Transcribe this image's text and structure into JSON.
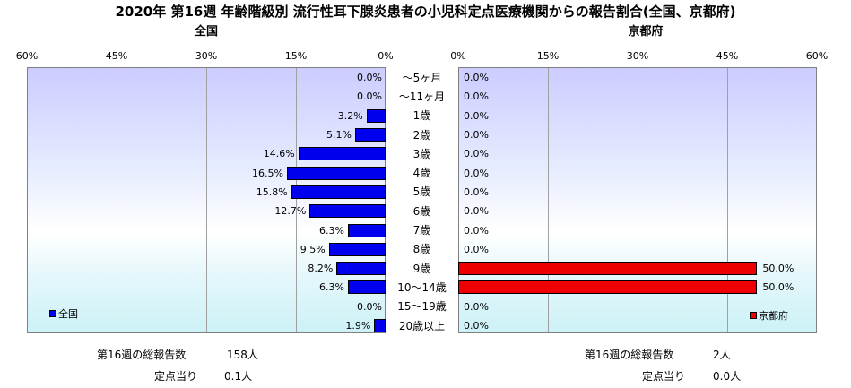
{
  "chart_data": {
    "type": "bar",
    "title": "2020年 第16週 年齢階級別 流行性耳下腺炎患者の小児科定点医療機関からの報告割合(全国、京都府)",
    "categories": [
      "～5ヶ月",
      "～11ヶ月",
      "1歳",
      "2歳",
      "3歳",
      "4歳",
      "5歳",
      "6歳",
      "7歳",
      "8歳",
      "9歳",
      "10～14歳",
      "15～19歳",
      "20歳以上"
    ],
    "xlim": [
      0,
      60
    ],
    "ticks": [
      "60%",
      "45%",
      "30%",
      "15%",
      "0%"
    ],
    "ticks_right": [
      "0%",
      "15%",
      "30%",
      "45%",
      "60%"
    ],
    "series": [
      {
        "name": "全国",
        "side_title": "全国",
        "color": "#0000ee",
        "values": [
          0.0,
          0.0,
          3.2,
          5.1,
          14.6,
          16.5,
          15.8,
          12.7,
          6.3,
          9.5,
          8.2,
          6.3,
          0.0,
          1.9
        ],
        "labels": [
          "0.0%",
          "0.0%",
          "3.2%",
          "5.1%",
          "14.6%",
          "16.5%",
          "15.8%",
          "12.7%",
          "6.3%",
          "9.5%",
          "8.2%",
          "6.3%",
          "0.0%",
          "1.9%"
        ]
      },
      {
        "name": "京都府",
        "side_title": "京都府",
        "color": "#ee0000",
        "values": [
          0.0,
          0.0,
          0.0,
          0.0,
          0.0,
          0.0,
          0.0,
          0.0,
          0.0,
          0.0,
          50.0,
          50.0,
          0.0,
          0.0
        ],
        "labels": [
          "0.0%",
          "0.0%",
          "0.0%",
          "0.0%",
          "0.0%",
          "0.0%",
          "0.0%",
          "0.0%",
          "0.0%",
          "0.0%",
          "50.0%",
          "50.0%",
          "0.0%",
          "0.0%"
        ]
      }
    ],
    "grid": true,
    "legend_position": "bottom-inside"
  },
  "footer": {
    "left_total_label": "第16週の総報告数",
    "left_total_value": "158人",
    "left_per_label": "定点当り",
    "left_per_value": "0.1人",
    "right_total_label": "第16週の総報告数",
    "right_total_value": "2人",
    "right_per_label": "定点当り",
    "right_per_value": "0.0人"
  }
}
